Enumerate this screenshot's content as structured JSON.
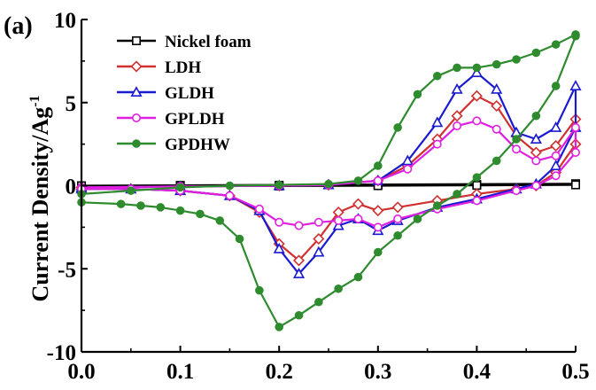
{
  "chart_data": {
    "type": "line",
    "panel_label": "(a)",
    "title": "",
    "xlabel": "",
    "ylabel": "Current Density/Ag",
    "ylabel_superscript": "-1",
    "xlim": [
      0.0,
      0.5
    ],
    "ylim": [
      -10,
      10
    ],
    "x_ticks": [
      0.0,
      0.1,
      0.2,
      0.3,
      0.4,
      0.5
    ],
    "x_tick_labels": [
      "0.0",
      "0.1",
      "0.2",
      "0.3",
      "0.4",
      "0.5"
    ],
    "y_ticks": [
      -10,
      -5,
      0,
      5,
      10
    ],
    "y_tick_labels": [
      "-10",
      "-5",
      "0",
      "5",
      "10"
    ],
    "grid": false,
    "legend_position": "top-left",
    "series": [
      {
        "name": "Nickel foam",
        "color": "#000000",
        "marker": "square",
        "upper": [
          [
            0.0,
            0.0
          ],
          [
            0.1,
            0.02
          ],
          [
            0.2,
            0.03
          ],
          [
            0.3,
            0.05
          ],
          [
            0.4,
            0.08
          ],
          [
            0.5,
            0.12
          ]
        ],
        "lower": [
          [
            0.0,
            0.0
          ],
          [
            0.1,
            -0.01
          ],
          [
            0.2,
            -0.02
          ],
          [
            0.3,
            0.0
          ],
          [
            0.4,
            0.02
          ],
          [
            0.5,
            0.05
          ]
        ]
      },
      {
        "name": "LDH",
        "color": "#d03030",
        "marker": "diamond",
        "upper": [
          [
            0.0,
            -0.1
          ],
          [
            0.1,
            -0.05
          ],
          [
            0.2,
            0.0
          ],
          [
            0.25,
            0.05
          ],
          [
            0.3,
            0.3
          ],
          [
            0.33,
            1.2
          ],
          [
            0.36,
            2.8
          ],
          [
            0.38,
            4.2
          ],
          [
            0.4,
            5.4
          ],
          [
            0.42,
            4.8
          ],
          [
            0.44,
            3.0
          ],
          [
            0.46,
            2.0
          ],
          [
            0.48,
            2.4
          ],
          [
            0.5,
            4.0
          ]
        ],
        "lower": [
          [
            0.5,
            2.5
          ],
          [
            0.48,
            0.8
          ],
          [
            0.46,
            0.0
          ],
          [
            0.44,
            -0.2
          ],
          [
            0.4,
            -0.5
          ],
          [
            0.36,
            -0.9
          ],
          [
            0.32,
            -1.3
          ],
          [
            0.3,
            -1.5
          ],
          [
            0.28,
            -1.1
          ],
          [
            0.26,
            -1.6
          ],
          [
            0.24,
            -3.2
          ],
          [
            0.22,
            -4.5
          ],
          [
            0.2,
            -3.5
          ],
          [
            0.18,
            -1.6
          ],
          [
            0.15,
            -0.6
          ],
          [
            0.1,
            -0.3
          ],
          [
            0.05,
            -0.2
          ],
          [
            0.0,
            -0.2
          ]
        ]
      },
      {
        "name": "GLDH",
        "color": "#1a1ad0",
        "marker": "triangle",
        "upper": [
          [
            0.0,
            -0.1
          ],
          [
            0.1,
            -0.05
          ],
          [
            0.2,
            0.0
          ],
          [
            0.25,
            0.05
          ],
          [
            0.3,
            0.3
          ],
          [
            0.33,
            1.5
          ],
          [
            0.36,
            3.8
          ],
          [
            0.38,
            5.8
          ],
          [
            0.4,
            6.8
          ],
          [
            0.42,
            5.8
          ],
          [
            0.44,
            3.2
          ],
          [
            0.46,
            2.8
          ],
          [
            0.48,
            3.5
          ],
          [
            0.5,
            6.0
          ]
        ],
        "lower": [
          [
            0.5,
            3.5
          ],
          [
            0.48,
            1.2
          ],
          [
            0.46,
            0.1
          ],
          [
            0.44,
            -0.2
          ],
          [
            0.4,
            -0.8
          ],
          [
            0.36,
            -1.3
          ],
          [
            0.32,
            -2.1
          ],
          [
            0.3,
            -2.7
          ],
          [
            0.28,
            -2.0
          ],
          [
            0.26,
            -2.4
          ],
          [
            0.24,
            -4.0
          ],
          [
            0.22,
            -5.3
          ],
          [
            0.2,
            -3.8
          ],
          [
            0.18,
            -1.5
          ],
          [
            0.15,
            -0.6
          ],
          [
            0.1,
            -0.3
          ],
          [
            0.05,
            -0.2
          ],
          [
            0.0,
            -0.2
          ]
        ]
      },
      {
        "name": "GPLDH",
        "color": "#e020e0",
        "marker": "circle",
        "upper": [
          [
            0.0,
            -0.1
          ],
          [
            0.1,
            -0.05
          ],
          [
            0.2,
            0.0
          ],
          [
            0.25,
            0.05
          ],
          [
            0.3,
            0.3
          ],
          [
            0.33,
            1.0
          ],
          [
            0.36,
            2.5
          ],
          [
            0.38,
            3.6
          ],
          [
            0.4,
            3.9
          ],
          [
            0.42,
            3.4
          ],
          [
            0.44,
            2.2
          ],
          [
            0.46,
            1.5
          ],
          [
            0.48,
            1.8
          ],
          [
            0.5,
            3.5
          ]
        ],
        "lower": [
          [
            0.5,
            2.0
          ],
          [
            0.48,
            0.6
          ],
          [
            0.46,
            0.0
          ],
          [
            0.44,
            -0.3
          ],
          [
            0.4,
            -0.9
          ],
          [
            0.36,
            -1.4
          ],
          [
            0.32,
            -2.0
          ],
          [
            0.3,
            -2.5
          ],
          [
            0.28,
            -2.0
          ],
          [
            0.26,
            -2.1
          ],
          [
            0.24,
            -2.2
          ],
          [
            0.22,
            -2.4
          ],
          [
            0.2,
            -2.2
          ],
          [
            0.18,
            -1.4
          ],
          [
            0.15,
            -0.6
          ],
          [
            0.1,
            -0.3
          ],
          [
            0.05,
            -0.2
          ],
          [
            0.0,
            -0.2
          ]
        ]
      },
      {
        "name": "GPDHW",
        "color": "#2e8b2e",
        "marker": "filled-circle",
        "upper": [
          [
            0.0,
            -0.5
          ],
          [
            0.05,
            -0.3
          ],
          [
            0.1,
            -0.1
          ],
          [
            0.15,
            0.0
          ],
          [
            0.2,
            0.05
          ],
          [
            0.25,
            0.1
          ],
          [
            0.28,
            0.3
          ],
          [
            0.3,
            1.2
          ],
          [
            0.32,
            3.5
          ],
          [
            0.34,
            5.5
          ],
          [
            0.36,
            6.6
          ],
          [
            0.38,
            7.1
          ],
          [
            0.4,
            7.1
          ],
          [
            0.42,
            7.3
          ],
          [
            0.44,
            7.6
          ],
          [
            0.46,
            8.0
          ],
          [
            0.48,
            8.5
          ],
          [
            0.5,
            9.1
          ]
        ],
        "lower": [
          [
            0.5,
            9.0
          ],
          [
            0.48,
            6.0
          ],
          [
            0.46,
            4.2
          ],
          [
            0.44,
            2.8
          ],
          [
            0.42,
            1.5
          ],
          [
            0.4,
            0.5
          ],
          [
            0.38,
            -0.5
          ],
          [
            0.36,
            -1.2
          ],
          [
            0.34,
            -2.0
          ],
          [
            0.32,
            -3.0
          ],
          [
            0.3,
            -4.0
          ],
          [
            0.28,
            -5.5
          ],
          [
            0.26,
            -6.2
          ],
          [
            0.24,
            -7.0
          ],
          [
            0.22,
            -7.8
          ],
          [
            0.2,
            -8.5
          ],
          [
            0.18,
            -6.3
          ],
          [
            0.16,
            -3.2
          ],
          [
            0.14,
            -2.1
          ],
          [
            0.12,
            -1.7
          ],
          [
            0.1,
            -1.5
          ],
          [
            0.08,
            -1.3
          ],
          [
            0.06,
            -1.2
          ],
          [
            0.04,
            -1.1
          ],
          [
            0.0,
            -1.0
          ]
        ]
      }
    ]
  }
}
